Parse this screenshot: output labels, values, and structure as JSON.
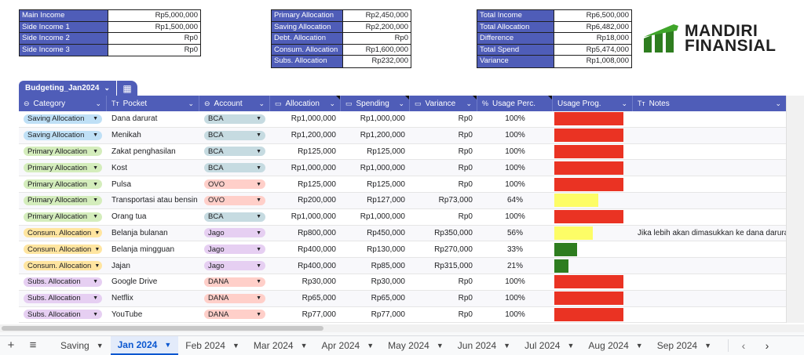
{
  "summary": {
    "income": [
      {
        "label": "Main Income",
        "value": "Rp5,000,000"
      },
      {
        "label": "Side Income 1",
        "value": "Rp1,500,000"
      },
      {
        "label": "Side Income 2",
        "value": "Rp0"
      },
      {
        "label": "Side Income 3",
        "value": "Rp0"
      }
    ],
    "allocation": [
      {
        "label": "Primary Allocation",
        "value": "Rp2,450,000"
      },
      {
        "label": "Saving Allocation",
        "value": "Rp2,200,000"
      },
      {
        "label": "Debt. Allocation",
        "value": "Rp0"
      },
      {
        "label": "Consum. Allocation",
        "value": "Rp1,600,000"
      },
      {
        "label": "Subs. Allocation",
        "value": "Rp232,000"
      }
    ],
    "totals": [
      {
        "label": "Total Income",
        "value": "Rp6,500,000"
      },
      {
        "label": "Total Allocation",
        "value": "Rp6,482,000"
      },
      {
        "label": "Difference",
        "value": "Rp18,000"
      },
      {
        "label": "Total Spend",
        "value": "Rp5,474,000"
      },
      {
        "label": "Variance",
        "value": "Rp1,008,000"
      }
    ]
  },
  "logo": {
    "line1": "MANDIRI",
    "line2": "FINANSIAL"
  },
  "table": {
    "name": "Budgeting_Jan2024",
    "columns": [
      "Category",
      "Pocket",
      "Account",
      "Allocation",
      "Spending",
      "Variance",
      "Usage Perc.",
      "Usage Prog.",
      "Notes"
    ],
    "rows": [
      {
        "category": "Saving Allocation",
        "pocket": "Dana darurat",
        "account": "BCA",
        "allocation": "Rp1,000,000",
        "spending": "Rp1,000,000",
        "variance": "Rp0",
        "usage": "100%",
        "progress": 1.0,
        "notes": ""
      },
      {
        "category": "Saving Allocation",
        "pocket": "Menikah",
        "account": "BCA",
        "allocation": "Rp1,200,000",
        "spending": "Rp1,200,000",
        "variance": "Rp0",
        "usage": "100%",
        "progress": 1.0,
        "notes": ""
      },
      {
        "category": "Primary Allocation",
        "pocket": "Zakat penghasilan",
        "account": "BCA",
        "allocation": "Rp125,000",
        "spending": "Rp125,000",
        "variance": "Rp0",
        "usage": "100%",
        "progress": 1.0,
        "notes": ""
      },
      {
        "category": "Primary Allocation",
        "pocket": "Kost",
        "account": "BCA",
        "allocation": "Rp1,000,000",
        "spending": "Rp1,000,000",
        "variance": "Rp0",
        "usage": "100%",
        "progress": 1.0,
        "notes": ""
      },
      {
        "category": "Primary Allocation",
        "pocket": "Pulsa",
        "account": "OVO",
        "allocation": "Rp125,000",
        "spending": "Rp125,000",
        "variance": "Rp0",
        "usage": "100%",
        "progress": 1.0,
        "notes": ""
      },
      {
        "category": "Primary Allocation",
        "pocket": "Transportasi atau bensin",
        "account": "OVO",
        "allocation": "Rp200,000",
        "spending": "Rp127,000",
        "variance": "Rp73,000",
        "usage": "64%",
        "progress": 0.64,
        "notes": ""
      },
      {
        "category": "Primary Allocation",
        "pocket": "Orang tua",
        "account": "BCA",
        "allocation": "Rp1,000,000",
        "spending": "Rp1,000,000",
        "variance": "Rp0",
        "usage": "100%",
        "progress": 1.0,
        "notes": ""
      },
      {
        "category": "Consum. Allocation",
        "pocket": "Belanja bulanan",
        "account": "Jago",
        "allocation": "Rp800,000",
        "spending": "Rp450,000",
        "variance": "Rp350,000",
        "usage": "56%",
        "progress": 0.56,
        "notes": "Jika lebih akan dimasukkan ke dana darurat"
      },
      {
        "category": "Consum. Allocation",
        "pocket": "Belanja mingguan",
        "account": "Jago",
        "allocation": "Rp400,000",
        "spending": "Rp130,000",
        "variance": "Rp270,000",
        "usage": "33%",
        "progress": 0.33,
        "notes": ""
      },
      {
        "category": "Consum. Allocation",
        "pocket": "Jajan",
        "account": "Jago",
        "allocation": "Rp400,000",
        "spending": "Rp85,000",
        "variance": "Rp315,000",
        "usage": "21%",
        "progress": 0.21,
        "notes": ""
      },
      {
        "category": "Subs. Allocation",
        "pocket": "Google Drive",
        "account": "DANA",
        "allocation": "Rp30,000",
        "spending": "Rp30,000",
        "variance": "Rp0",
        "usage": "100%",
        "progress": 1.0,
        "notes": ""
      },
      {
        "category": "Subs. Allocation",
        "pocket": "Netflix",
        "account": "DANA",
        "allocation": "Rp65,000",
        "spending": "Rp65,000",
        "variance": "Rp0",
        "usage": "100%",
        "progress": 1.0,
        "notes": ""
      },
      {
        "category": "Subs. Allocation",
        "pocket": "YouTube",
        "account": "DANA",
        "allocation": "Rp77,000",
        "spending": "Rp77,000",
        "variance": "Rp0",
        "usage": "100%",
        "progress": 1.0,
        "notes": ""
      }
    ]
  },
  "colors": {
    "header": "#4f5db8",
    "chip_saving": "#bfe0f6",
    "chip_primary": "#d4edbc",
    "chip_consum": "#ffe5a0",
    "chip_subs": "#e6cff2",
    "chip_bca": "#c6dbe1",
    "chip_ovo": "#ffcfc9",
    "chip_jago": "#e6cff2",
    "chip_dana": "#ffcfc9",
    "bar_red": "#ea3323",
    "bar_yellow": "#fdfd66",
    "bar_green": "#2e7d1f"
  },
  "sheet_tabs": [
    {
      "label": "Saving",
      "active": false
    },
    {
      "label": "Jan 2024",
      "active": true
    },
    {
      "label": "Feb 2024",
      "active": false
    },
    {
      "label": "Mar 2024",
      "active": false
    },
    {
      "label": "Apr 2024",
      "active": false
    },
    {
      "label": "May 2024",
      "active": false
    },
    {
      "label": "Jun 2024",
      "active": false
    },
    {
      "label": "Jul 2024",
      "active": false
    },
    {
      "label": "Aug 2024",
      "active": false
    },
    {
      "label": "Sep 2024",
      "active": false
    }
  ]
}
